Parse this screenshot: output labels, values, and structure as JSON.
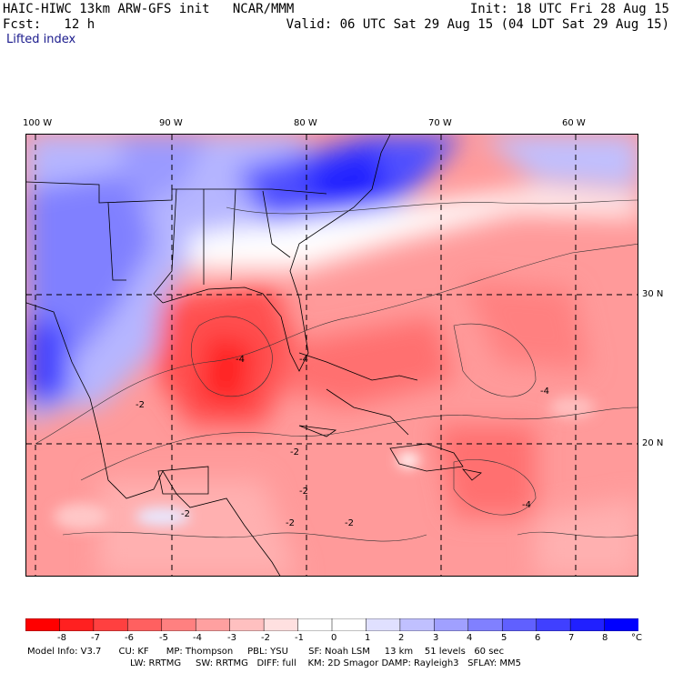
{
  "header": {
    "title_left": "HAIC-HIWC 13km ARW-GFS init   NCAR/MMM",
    "forecast": "Fcst:   12 h",
    "init": "Init: 18 UTC Fri 28 Aug 15",
    "valid": "Valid: 06 UTC Sat 29 Aug 15 (04 LDT Sat 29 Aug 15)",
    "field": "Lifted index"
  },
  "axes": {
    "longitudes": [
      "100 W",
      "90 W",
      "80 W",
      "70 W",
      "60 W"
    ],
    "latitudes": [
      "30 N",
      "20 N"
    ]
  },
  "colorbar": {
    "ticks": [
      "-8",
      "-7",
      "-6",
      "-5",
      "-4",
      "-3",
      "-2",
      "-1",
      "0",
      "1",
      "2",
      "3",
      "4",
      "5",
      "6",
      "7",
      "8"
    ],
    "unit": "°C",
    "colors": [
      "#ff0000",
      "#ff2020",
      "#ff4040",
      "#ff6060",
      "#ff8080",
      "#ffa0a0",
      "#ffc0c0",
      "#ffe0e0",
      "#ffffff",
      "#ffffff",
      "#e0e0ff",
      "#c0c0ff",
      "#a0a0ff",
      "#8080ff",
      "#6060ff",
      "#4040ff",
      "#2020ff",
      "#0000ff"
    ]
  },
  "model_info": {
    "line1": "Model Info: V3.7      CU: KF      MP: Thompson     PBL: YSU       SF: Noah LSM     13 km    51 levels   60 sec",
    "line2": "LW: RRTMG     SW: RRTMG   DIFF: full    KM: 2D Smagor DAMP: Rayleigh3   SFLAY: MM5"
  },
  "contour_labels": [
    "-2",
    "-2",
    "-4",
    "-2",
    "-4",
    "-2",
    "-2",
    "-4",
    "-2",
    "-4"
  ]
}
